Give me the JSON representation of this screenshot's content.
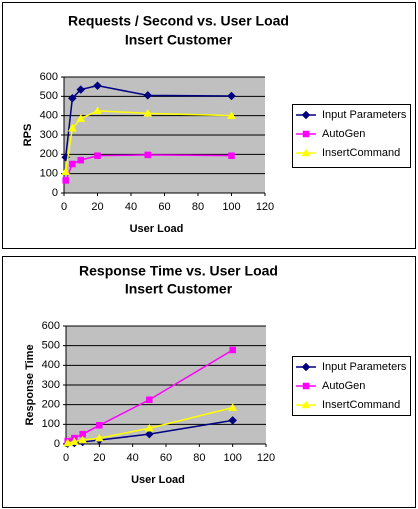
{
  "chart_data": [
    {
      "type": "line",
      "title": "Requests / Second  vs.  User Load",
      "subtitle": "Insert Customer",
      "xlabel": "User Load",
      "ylabel": "RPS",
      "x": [
        1,
        5,
        10,
        20,
        50,
        100
      ],
      "series": [
        {
          "name": "Input Parameters",
          "color": "#000080",
          "marker": "diamond",
          "values": [
            185,
            490,
            535,
            555,
            505,
            502
          ]
        },
        {
          "name": "AutoGen",
          "color": "#ff00ff",
          "marker": "square",
          "values": [
            65,
            150,
            170,
            193,
            197,
            193
          ]
        },
        {
          "name": "InsertCommand",
          "color": "#ffff00",
          "marker": "triangle",
          "values": [
            110,
            335,
            385,
            425,
            412,
            400
          ]
        }
      ],
      "xlim": [
        0,
        120
      ],
      "ylim": [
        0,
        600
      ],
      "xticks": [
        0,
        20,
        40,
        60,
        80,
        100,
        120
      ],
      "yticks": [
        0,
        100,
        200,
        300,
        400,
        500,
        600
      ],
      "grid": true,
      "legend": "right",
      "plot_background": "#c0c0c0"
    },
    {
      "type": "line",
      "title": "Response Time  vs.  User Load",
      "subtitle": "Insert Customer",
      "xlabel": "User Load",
      "ylabel": "Response Time",
      "x": [
        1,
        5,
        10,
        20,
        50,
        100
      ],
      "series": [
        {
          "name": "Input Parameters",
          "color": "#000080",
          "marker": "diamond",
          "values": [
            2,
            5,
            10,
            20,
            50,
            120
          ]
        },
        {
          "name": "AutoGen",
          "color": "#ff00ff",
          "marker": "square",
          "values": [
            15,
            30,
            50,
            95,
            225,
            478
          ]
        },
        {
          "name": "InsertCommand",
          "color": "#ffff00",
          "marker": "triangle",
          "values": [
            5,
            12,
            20,
            30,
            80,
            185
          ]
        }
      ],
      "xlim": [
        0,
        120
      ],
      "ylim": [
        0,
        600
      ],
      "xticks": [
        0,
        20,
        40,
        60,
        80,
        100,
        120
      ],
      "yticks": [
        0,
        100,
        200,
        300,
        400,
        500,
        600
      ],
      "grid": true,
      "legend": "right",
      "plot_background": "#c0c0c0"
    }
  ]
}
